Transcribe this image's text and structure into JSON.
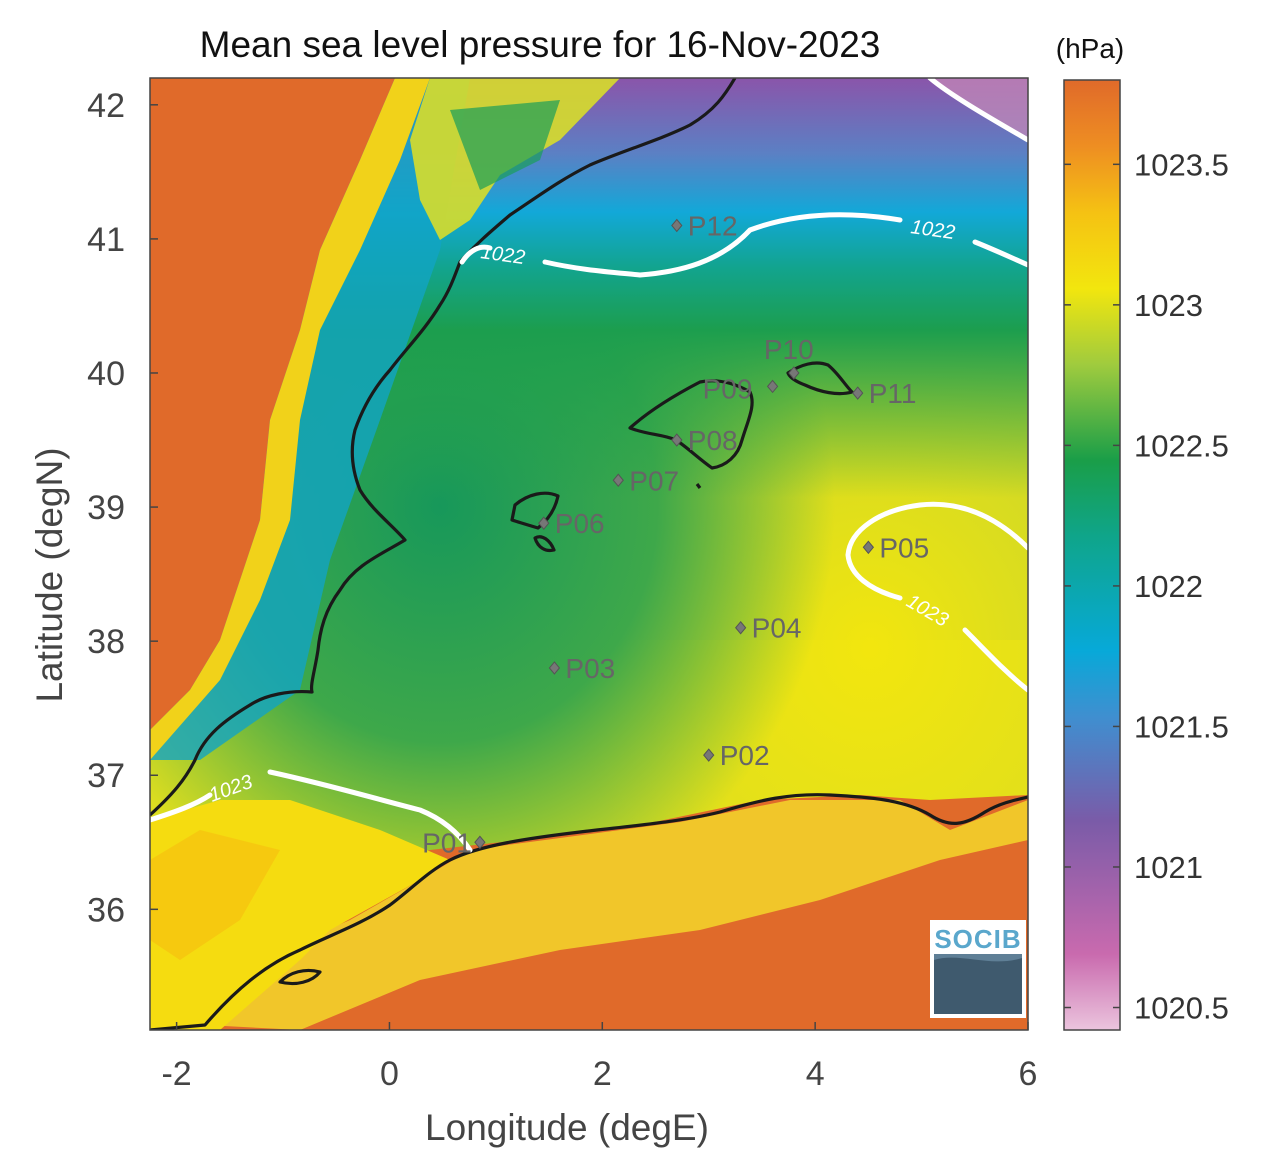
{
  "title": "Mean sea level pressure for 16-Nov-2023",
  "xlabel": "Longitude (degE)",
  "ylabel": "Latitude (degN)",
  "x_range": [
    -2.25,
    6.0
  ],
  "y_range": [
    35.1,
    42.2
  ],
  "x_ticks": [
    "-2",
    "0",
    "2",
    "4",
    "6"
  ],
  "y_ticks": [
    "36",
    "37",
    "38",
    "39",
    "40",
    "41",
    "42"
  ],
  "colorbar": {
    "unit": "(hPa)",
    "range": [
      1020.42,
      1023.8
    ],
    "ticks": [
      "1020.5",
      "1021",
      "1021.5",
      "1022",
      "1022.5",
      "1023",
      "1023.5"
    ]
  },
  "contours": [
    {
      "label": "1022"
    },
    {
      "label": "1023"
    }
  ],
  "points": [
    {
      "label": "P01",
      "lon": 0.85,
      "lat": 36.5
    },
    {
      "label": "P02",
      "lon": 3.0,
      "lat": 37.15
    },
    {
      "label": "P03",
      "lon": 1.55,
      "lat": 37.8
    },
    {
      "label": "P04",
      "lon": 3.3,
      "lat": 38.1
    },
    {
      "label": "P05",
      "lon": 4.5,
      "lat": 38.7
    },
    {
      "label": "P06",
      "lon": 1.45,
      "lat": 38.88
    },
    {
      "label": "P07",
      "lon": 2.15,
      "lat": 39.2
    },
    {
      "label": "P08",
      "lon": 2.7,
      "lat": 39.5
    },
    {
      "label": "P09",
      "lon": 3.6,
      "lat": 39.9
    },
    {
      "label": "P10",
      "lon": 3.8,
      "lat": 40.0
    },
    {
      "label": "P11",
      "lon": 4.4,
      "lat": 39.85
    },
    {
      "label": "P12",
      "lon": 2.7,
      "lat": 41.1
    }
  ],
  "logo": {
    "text": "SOCIB"
  },
  "colors": {
    "land_high": "#e06a2a",
    "yellow": "#f2e60e",
    "green": "#1a9e5a",
    "cyan": "#0aa6c9",
    "blue": "#4a90cc",
    "purple": "#8b55a8",
    "pink": "#e8bed8",
    "coastline": "#1a1a1a",
    "contour": "#ffffff"
  }
}
